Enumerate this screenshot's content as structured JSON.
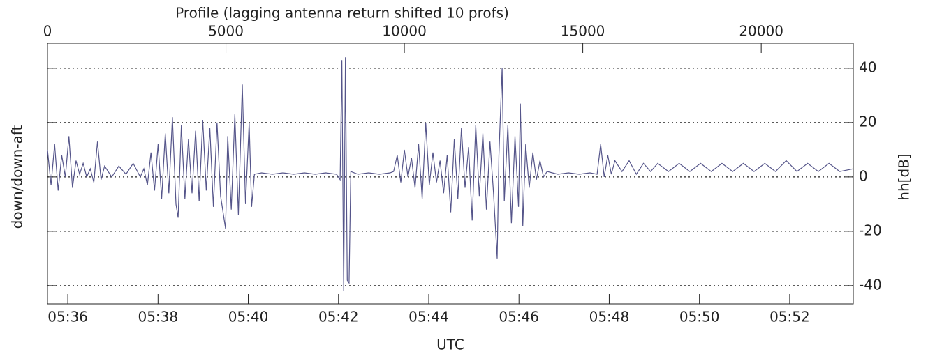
{
  "chart_data": {
    "type": "line",
    "title": "Profile (lagging antenna return shifted 10 profs)",
    "x_label": "UTC",
    "y_label": "down/down-aft",
    "y2_label": "hh[dB]",
    "xlim": [
      0,
      22580
    ],
    "xticks": [
      0,
      5000,
      10000,
      15000,
      20000
    ],
    "x2lim": [
      35.55,
      53.41
    ],
    "x2ticks": [
      {
        "value": 36,
        "label": "05:36"
      },
      {
        "value": 38,
        "label": "05:38"
      },
      {
        "value": 40,
        "label": "05:40"
      },
      {
        "value": 42,
        "label": "05:42"
      },
      {
        "value": 44,
        "label": "05:44"
      },
      {
        "value": 46,
        "label": "05:46"
      },
      {
        "value": 48,
        "label": "05:48"
      },
      {
        "value": 50,
        "label": "05:50"
      },
      {
        "value": 52,
        "label": "05:52"
      }
    ],
    "ylim": [
      -46.7,
      49.2
    ],
    "yticks": [
      -40,
      -20,
      0,
      20,
      40
    ],
    "grid": true,
    "x": [
      0,
      100,
      200,
      300,
      400,
      500,
      600,
      700,
      800,
      900,
      1000,
      1100,
      1200,
      1300,
      1400,
      1500,
      1600,
      1800,
      2000,
      2200,
      2400,
      2600,
      2700,
      2800,
      2900,
      3000,
      3100,
      3200,
      3300,
      3400,
      3500,
      3600,
      3660,
      3750,
      3850,
      3950,
      4050,
      4150,
      4250,
      4350,
      4450,
      4550,
      4650,
      4750,
      4850,
      4990,
      5050,
      5150,
      5250,
      5350,
      5460,
      5550,
      5650,
      5720,
      5800,
      6000,
      6300,
      6600,
      6900,
      7200,
      7500,
      7800,
      8100,
      8200,
      8250,
      8300,
      8350,
      8400,
      8450,
      8500,
      8700,
      9000,
      9300,
      9600,
      9700,
      9800,
      9900,
      10000,
      10100,
      10200,
      10300,
      10400,
      10500,
      10600,
      10700,
      10800,
      10900,
      11000,
      11100,
      11200,
      11300,
      11400,
      11500,
      11600,
      11700,
      11800,
      11900,
      12000,
      12100,
      12200,
      12300,
      12400,
      12500,
      12600,
      12650,
      12740,
      12800,
      12900,
      13000,
      13100,
      13200,
      13250,
      13320,
      13400,
      13500,
      13600,
      13700,
      13800,
      13900,
      14000,
      14300,
      14600,
      14900,
      15200,
      15400,
      15500,
      15600,
      15700,
      15800,
      15900,
      16100,
      16300,
      16500,
      16700,
      16900,
      17100,
      17400,
      17700,
      18000,
      18300,
      18600,
      18900,
      19200,
      19500,
      19800,
      20100,
      20400,
      20700,
      21000,
      21300,
      21600,
      21900,
      22200,
      22580
    ],
    "series": [
      {
        "color": "#55558a",
        "values": [
          10,
          -3,
          12,
          -5,
          8,
          0,
          15,
          -4,
          6,
          1,
          5,
          0,
          3,
          -2,
          13,
          -1,
          4,
          0,
          4,
          1,
          5,
          0,
          3,
          -3,
          9,
          -5,
          12,
          -8,
          16,
          -6,
          22,
          -10,
          -15,
          19,
          -8,
          14,
          -6,
          17,
          -9,
          21,
          -5,
          18,
          -11,
          20,
          -7,
          -19,
          15,
          -12,
          23,
          -14,
          34,
          -10,
          20,
          -11,
          1,
          1.5,
          1,
          1.5,
          1,
          1.5,
          1,
          1.5,
          1,
          -1,
          43,
          -42,
          44,
          -38,
          -39,
          2,
          1,
          1.5,
          1,
          1.5,
          2,
          8,
          -2,
          10,
          0,
          7,
          -4,
          12,
          -8,
          20,
          -3,
          9,
          -2,
          6,
          -6,
          8,
          -13,
          14,
          -8,
          18,
          -4,
          11,
          -16,
          19,
          -7,
          16,
          -12,
          13,
          -6,
          -30,
          8,
          40,
          -9,
          19,
          -17,
          15,
          -11,
          27,
          -18,
          12,
          -4,
          9,
          -1,
          6,
          0,
          2,
          1,
          1.5,
          1,
          1.5,
          1,
          12,
          0,
          8,
          1,
          6,
          2,
          6,
          1,
          5,
          2,
          5,
          2,
          5,
          2,
          5,
          2,
          5,
          2,
          5,
          2,
          5,
          2,
          6,
          2,
          5,
          2,
          5,
          2,
          3
        ]
      }
    ]
  }
}
